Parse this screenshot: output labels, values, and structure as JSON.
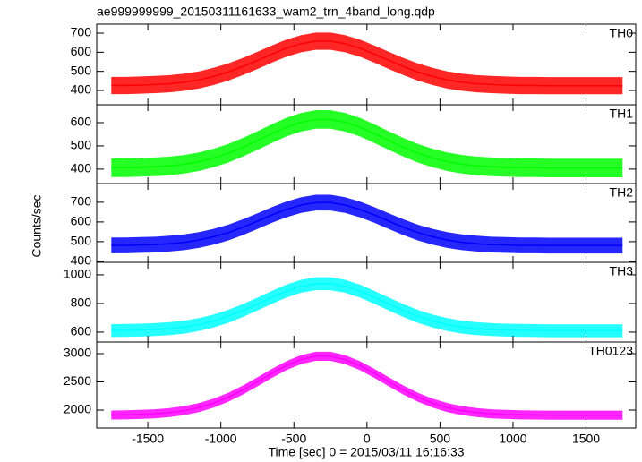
{
  "chart_data": [
    {
      "type": "line",
      "title": "ae999999999_20150311161633_wam2_trn_4band_long.qdp",
      "label": "TH0",
      "x": [
        -1750,
        -1650,
        -1550,
        -1450,
        -1350,
        -1250,
        -1150,
        -1050,
        -950,
        -850,
        -750,
        -650,
        -550,
        -450,
        -350,
        -250,
        -150,
        -50,
        50,
        150,
        250,
        350,
        450,
        550,
        650,
        750,
        850,
        950,
        1050,
        1150,
        1250,
        1350,
        1450,
        1550,
        1650,
        1750
      ],
      "series": [
        {
          "color": "#ff0000",
          "band": 45,
          "values": [
            426,
            426,
            428,
            431,
            435,
            443,
            455,
            473,
            496,
            525,
            557,
            591,
            622,
            645,
            658,
            658,
            645,
            622,
            591,
            557,
            525,
            496,
            473,
            455,
            443,
            435,
            431,
            428,
            426,
            426,
            425,
            425,
            425,
            425,
            425,
            425
          ]
        }
      ],
      "xlim": [
        -1850,
        1840
      ],
      "xticks": [
        -1500,
        -1000,
        -500,
        0,
        500,
        1000,
        1500
      ],
      "ylim": [
        325,
        747
      ],
      "yticks": [
        400,
        500,
        600,
        700
      ]
    },
    {
      "type": "line",
      "label": "TH1",
      "x": [
        -1750,
        -1650,
        -1550,
        -1450,
        -1350,
        -1250,
        -1150,
        -1050,
        -950,
        -850,
        -750,
        -650,
        -550,
        -450,
        -350,
        -250,
        -150,
        -50,
        50,
        150,
        250,
        350,
        450,
        550,
        650,
        750,
        850,
        950,
        1050,
        1150,
        1250,
        1350,
        1450,
        1550,
        1650,
        1750
      ],
      "series": [
        {
          "color": "#00ff00",
          "band": 40,
          "values": [
            406,
            406,
            408,
            410,
            414,
            421,
            432,
            448,
            468,
            494,
            523,
            553,
            581,
            602,
            614,
            614,
            602,
            581,
            553,
            523,
            494,
            468,
            448,
            432,
            421,
            414,
            410,
            408,
            406,
            406,
            405,
            405,
            405,
            405,
            405,
            405
          ]
        }
      ],
      "xlim": [
        -1850,
        1840
      ],
      "xticks": [
        -1500,
        -1000,
        -500,
        0,
        500,
        1000,
        1500
      ],
      "ylim": [
        338,
        677
      ],
      "yticks": [
        400,
        500,
        600
      ]
    },
    {
      "type": "line",
      "label": "TH2",
      "ylabel": "Counts/sec",
      "x": [
        -1750,
        -1650,
        -1550,
        -1450,
        -1350,
        -1250,
        -1150,
        -1050,
        -950,
        -850,
        -750,
        -650,
        -550,
        -450,
        -350,
        -250,
        -150,
        -50,
        50,
        150,
        250,
        350,
        450,
        550,
        650,
        750,
        850,
        950,
        1050,
        1150,
        1250,
        1350,
        1450,
        1550,
        1650,
        1750
      ],
      "series": [
        {
          "color": "#0000ff",
          "band": 40,
          "values": [
            481,
            481,
            483,
            485,
            490,
            497,
            508,
            525,
            546,
            573,
            604,
            636,
            664,
            686,
            698,
            698,
            686,
            664,
            636,
            604,
            573,
            546,
            525,
            508,
            497,
            490,
            485,
            483,
            481,
            481,
            480,
            480,
            480,
            480,
            480,
            480
          ]
        }
      ],
      "xlim": [
        -1850,
        1840
      ],
      "xticks": [
        -1500,
        -1000,
        -500,
        0,
        500,
        1000,
        1500
      ],
      "ylim": [
        395,
        795
      ],
      "yticks": [
        400,
        500,
        600,
        700
      ]
    },
    {
      "type": "line",
      "label": "TH3",
      "x": [
        -1750,
        -1650,
        -1550,
        -1450,
        -1350,
        -1250,
        -1150,
        -1050,
        -950,
        -850,
        -750,
        -650,
        -550,
        -450,
        -350,
        -250,
        -150,
        -50,
        50,
        150,
        250,
        350,
        450,
        550,
        650,
        750,
        850,
        950,
        1050,
        1150,
        1250,
        1350,
        1450,
        1550,
        1650,
        1750
      ],
      "series": [
        {
          "color": "#00ffff",
          "band": 45,
          "values": [
            611,
            612,
            614,
            618,
            625,
            635,
            653,
            677,
            710,
            750,
            796,
            843,
            887,
            920,
            938,
            938,
            920,
            887,
            843,
            796,
            750,
            710,
            677,
            653,
            635,
            625,
            618,
            614,
            612,
            611,
            610,
            610,
            610,
            610,
            610,
            610
          ]
        }
      ],
      "xlim": [
        -1850,
        1840
      ],
      "xticks": [
        -1500,
        -1000,
        -500,
        0,
        500,
        1000,
        1500
      ],
      "ylim": [
        531,
        1087
      ],
      "yticks": [
        600,
        800,
        1000
      ]
    },
    {
      "type": "line",
      "label": "TH0123",
      "xlabel": "Time [sec] 0 = 2015/03/11 16:16:33",
      "x": [
        -1750,
        -1650,
        -1550,
        -1450,
        -1350,
        -1250,
        -1150,
        -1050,
        -950,
        -850,
        -750,
        -650,
        -550,
        -450,
        -350,
        -250,
        -150,
        -50,
        50,
        150,
        250,
        350,
        450,
        550,
        650,
        750,
        850,
        950,
        1050,
        1150,
        1250,
        1350,
        1450,
        1550,
        1650,
        1750
      ],
      "series": [
        {
          "color": "#ff00ff",
          "band": 80,
          "values": [
            1913,
            1916,
            1923,
            1935,
            1956,
            1991,
            2045,
            2123,
            2227,
            2355,
            2501,
            2652,
            2790,
            2895,
            2953,
            2953,
            2895,
            2790,
            2652,
            2501,
            2355,
            2227,
            2123,
            2045,
            1991,
            1956,
            1935,
            1923,
            1916,
            1913,
            1911,
            1910,
            1910,
            1910,
            1910,
            1910
          ]
        }
      ],
      "xlim": [
        -1850,
        1840
      ],
      "xticks": [
        -1500,
        -1000,
        -500,
        0,
        500,
        1000,
        1500
      ],
      "ylim": [
        1683,
        3206
      ],
      "yticks": [
        2000,
        2500,
        3000
      ]
    }
  ]
}
